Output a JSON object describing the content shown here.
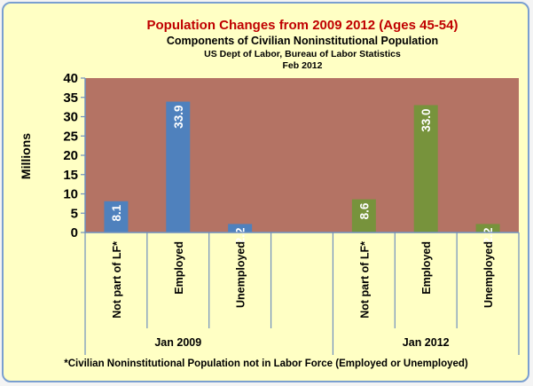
{
  "chart_data": {
    "type": "bar",
    "title": "Population Changes  from 2009 2012 (Ages 45-54)",
    "subtitle": "Components of Civilian Noninstitutional Population",
    "source": "US Dept of Labor, Bureau of Labor Statistics",
    "date": "Feb 2012",
    "ylabel": "Millions",
    "ylim": [
      0,
      40
    ],
    "yticks": [
      "0",
      "5",
      "10",
      "15",
      "20",
      "25",
      "30",
      "35",
      "40"
    ],
    "grid": false,
    "plot_background": "#b47364",
    "groups": [
      {
        "name": "Jan 2009",
        "color": "#4f81bd",
        "categories": [
          "Not part of LF*",
          "Employed",
          "Unemployed"
        ],
        "values": [
          8.1,
          33.9,
          2.2
        ],
        "labels": [
          "8.1",
          "33.9",
          "2.2"
        ]
      },
      {
        "name": "Jan 2012",
        "color": "#77933c",
        "categories": [
          "Not part of LF*",
          "Employed",
          "Unemployed"
        ],
        "values": [
          8.6,
          33.0,
          2.2
        ],
        "labels": [
          "8.6",
          "33.0",
          "2.2"
        ]
      }
    ],
    "footnote": "*Civilian Noninstitutional Population not in Labor Force (Employed or Unemployed)"
  }
}
